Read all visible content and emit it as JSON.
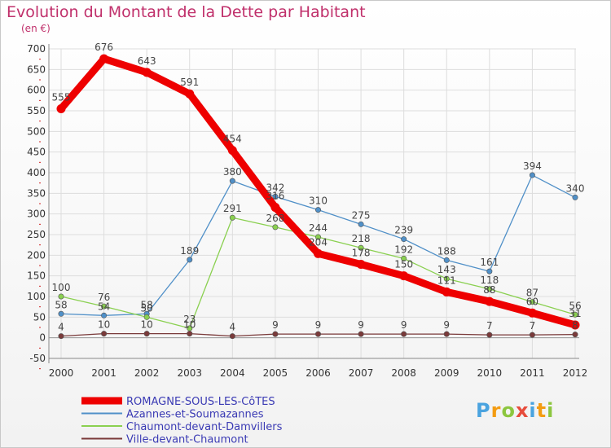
{
  "chart_data": {
    "type": "line",
    "title": "Evolution du Montant de la Dette par Habitant",
    "subtitle": "(en €)",
    "x": [
      "2000",
      "2001",
      "2002",
      "2003",
      "2004",
      "2005",
      "2006",
      "2007",
      "2008",
      "2009",
      "2010",
      "2011",
      "2012"
    ],
    "ylim": [
      -50,
      700
    ],
    "yticks": [
      -50,
      0,
      50,
      100,
      150,
      200,
      250,
      300,
      350,
      400,
      450,
      500,
      550,
      600,
      650,
      700
    ],
    "grid": true,
    "legend_position": "bottom-left",
    "series": [
      {
        "name": "ROMAGNE-SOUS-LES-CôTES",
        "color": "#ee0000",
        "emphasis": true,
        "values": [
          555,
          676,
          643,
          591,
          454,
          316,
          204,
          178,
          150,
          111,
          88,
          60,
          31
        ]
      },
      {
        "name": "Azannes-et-Soumazannes",
        "color": "#5090c8",
        "emphasis": false,
        "values": [
          58,
          54,
          58,
          189,
          380,
          342,
          310,
          275,
          239,
          188,
          161,
          394,
          340
        ]
      },
      {
        "name": "Chaumont-devant-Damvillers",
        "color": "#8ad050",
        "emphasis": false,
        "values": [
          100,
          76,
          50,
          23,
          291,
          268,
          244,
          218,
          192,
          143,
          118,
          87,
          56
        ]
      },
      {
        "name": "Ville-devant-Chaumont",
        "color": "#7a3a3a",
        "emphasis": false,
        "values": [
          4,
          10,
          10,
          10,
          4,
          9,
          9,
          9,
          9,
          9,
          7,
          7,
          8
        ]
      }
    ]
  },
  "logo": {
    "text": "Proxiti",
    "colors": [
      "#4aa3df",
      "#f39c12",
      "#8cc63f",
      "#e74c3c",
      "#4aa3df",
      "#f39c12",
      "#8cc63f"
    ]
  }
}
